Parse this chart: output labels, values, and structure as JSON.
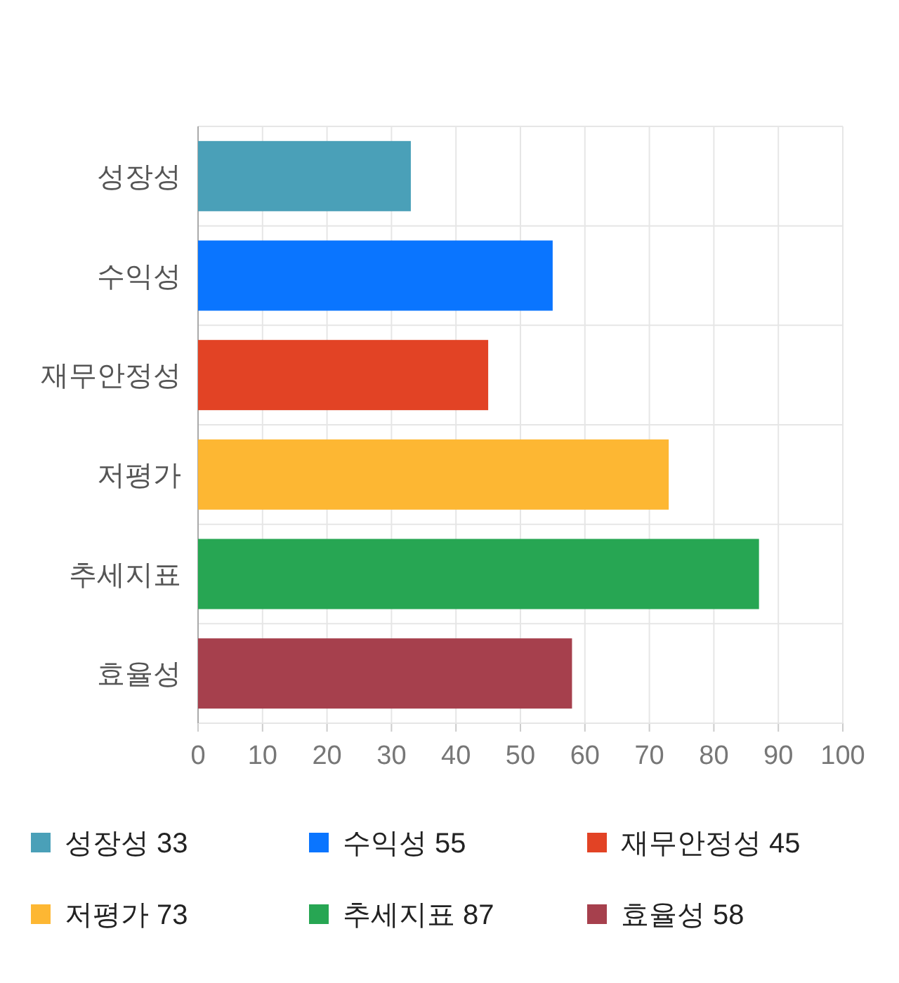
{
  "chart_data": {
    "type": "bar",
    "orientation": "horizontal",
    "categories": [
      "성장성",
      "수익성",
      "재무안정성",
      "저평가",
      "추세지표",
      "효율성"
    ],
    "series": [
      {
        "name": "성장성 33",
        "color": "#4aa0b8",
        "values": [
          33,
          null,
          null,
          null,
          null,
          null
        ]
      },
      {
        "name": "수익성 55",
        "color": "#0a75ff",
        "values": [
          null,
          55,
          null,
          null,
          null,
          null
        ]
      },
      {
        "name": "재무안정성 45",
        "color": "#e24325",
        "values": [
          null,
          null,
          45,
          null,
          null,
          null
        ]
      },
      {
        "name": "저평가 73",
        "color": "#fdb733",
        "values": [
          null,
          null,
          null,
          73,
          null,
          null
        ]
      },
      {
        "name": "추세지표 87",
        "color": "#27a653",
        "values": [
          null,
          null,
          null,
          null,
          87,
          null
        ]
      },
      {
        "name": "효율성 58",
        "color": "#a6404d",
        "values": [
          null,
          null,
          null,
          null,
          null,
          58
        ]
      }
    ],
    "xlim": [
      0,
      100
    ],
    "xticks": [
      0,
      10,
      20,
      30,
      40,
      50,
      60,
      70,
      80,
      90,
      100
    ],
    "grid": true,
    "legend": "bottom"
  }
}
